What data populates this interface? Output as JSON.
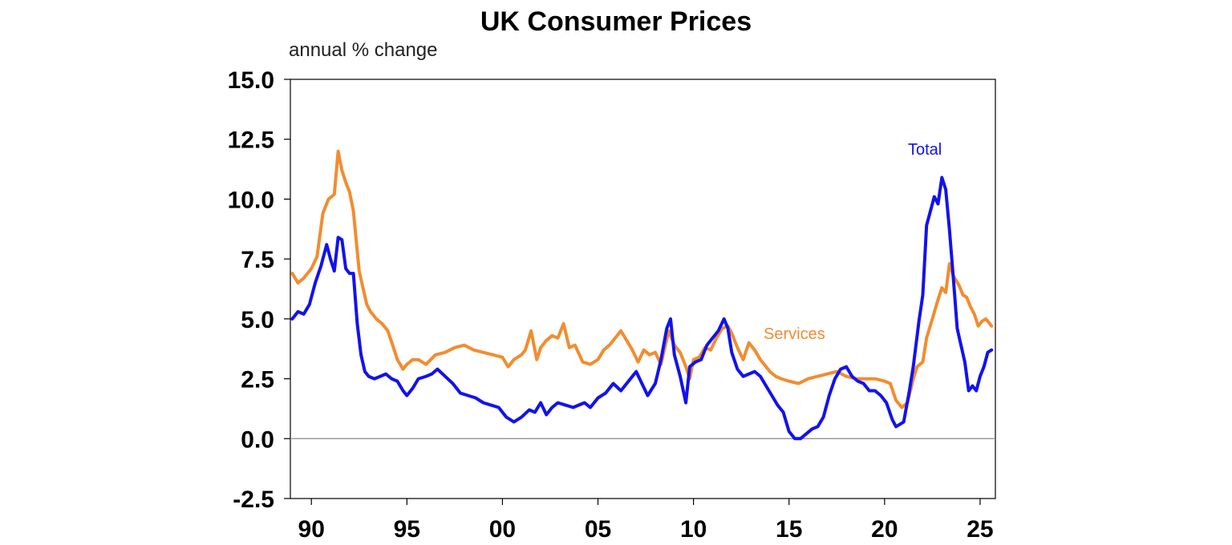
{
  "chart_data": {
    "type": "line",
    "title": "UK Consumer Prices",
    "ylabel": "annual % change",
    "xlabel": "",
    "xlim": [
      1988.9,
      2025.8
    ],
    "ylim": [
      -2.5,
      15.0
    ],
    "yticks": [
      15.0,
      12.5,
      10.0,
      7.5,
      5.0,
      2.5,
      0.0,
      -2.5
    ],
    "ytick_labels": [
      "15.0",
      "12.5",
      "10.0",
      "7.5",
      "5.0",
      "2.5",
      "0.0",
      "-2.5"
    ],
    "xticks": [
      1990,
      1995,
      2000,
      2005,
      2010,
      2015,
      2020,
      2025
    ],
    "xtick_labels": [
      "90",
      "95",
      "00",
      "05",
      "10",
      "15",
      "20",
      "25"
    ],
    "zero_line": 0,
    "series": [
      {
        "name": "Services",
        "color": "#F28C30",
        "x": [
          1989.0,
          1989.3,
          1989.6,
          1990.0,
          1990.3,
          1990.6,
          1990.9,
          1991.2,
          1991.4,
          1991.6,
          1991.8,
          1992.0,
          1992.2,
          1992.5,
          1992.7,
          1992.9,
          1993.1,
          1993.4,
          1993.7,
          1994.0,
          1994.3,
          1994.5,
          1994.8,
          1995.0,
          1995.3,
          1995.6,
          1996.0,
          1996.5,
          1997.0,
          1997.5,
          1998.0,
          1998.5,
          1999.0,
          1999.5,
          2000.0,
          2000.3,
          2000.6,
          2001.0,
          2001.2,
          2001.5,
          2001.8,
          2002.0,
          2002.3,
          2002.6,
          2002.9,
          2003.2,
          2003.5,
          2003.8,
          2004.2,
          2004.6,
          2005.0,
          2005.3,
          2005.6,
          2005.9,
          2006.2,
          2006.5,
          2006.8,
          2007.1,
          2007.4,
          2007.7,
          2008.0,
          2008.3,
          2008.7,
          2009.0,
          2009.3,
          2009.6,
          2009.8,
          2010.0,
          2010.3,
          2010.6,
          2010.9,
          2011.2,
          2011.5,
          2011.8,
          2012.0,
          2012.3,
          2012.6,
          2012.9,
          2013.2,
          2013.5,
          2013.8,
          2014.0,
          2014.3,
          2014.6,
          2015.0,
          2015.5,
          2016.0,
          2016.5,
          2017.0,
          2017.5,
          2018.0,
          2018.5,
          2019.0,
          2019.5,
          2020.0,
          2020.3,
          2020.6,
          2020.9,
          2021.2,
          2021.5,
          2021.7,
          2022.0,
          2022.2,
          2022.5,
          2022.8,
          2023.0,
          2023.2,
          2023.4,
          2023.6,
          2023.9,
          2024.1,
          2024.3,
          2024.5,
          2024.7,
          2024.9,
          2025.1,
          2025.3,
          2025.6
        ],
        "values": [
          6.9,
          6.5,
          6.7,
          7.1,
          7.6,
          9.4,
          10.0,
          10.2,
          12.0,
          11.2,
          10.7,
          10.3,
          9.5,
          7.0,
          6.3,
          5.6,
          5.3,
          5.0,
          4.8,
          4.5,
          3.8,
          3.3,
          2.9,
          3.1,
          3.3,
          3.3,
          3.1,
          3.5,
          3.6,
          3.8,
          3.9,
          3.7,
          3.6,
          3.5,
          3.4,
          3.0,
          3.3,
          3.5,
          3.7,
          4.5,
          3.3,
          3.8,
          4.1,
          4.3,
          4.2,
          4.8,
          3.8,
          3.9,
          3.2,
          3.1,
          3.3,
          3.7,
          3.9,
          4.2,
          4.5,
          4.1,
          3.7,
          3.2,
          3.7,
          3.5,
          3.6,
          3.1,
          4.5,
          3.9,
          3.6,
          3.0,
          2.5,
          3.3,
          3.4,
          3.8,
          3.7,
          4.2,
          4.6,
          4.7,
          4.4,
          3.8,
          3.3,
          4.0,
          3.7,
          3.3,
          3.0,
          2.8,
          2.6,
          2.5,
          2.4,
          2.3,
          2.5,
          2.6,
          2.7,
          2.8,
          2.6,
          2.5,
          2.5,
          2.5,
          2.4,
          2.3,
          1.6,
          1.3,
          1.5,
          2.5,
          3.0,
          3.2,
          4.2,
          5.0,
          5.8,
          6.3,
          6.1,
          7.3,
          6.8,
          6.4,
          6.0,
          5.9,
          5.5,
          5.2,
          4.7,
          4.9,
          5.0,
          4.7
        ]
      },
      {
        "name": "Total",
        "color": "#1212EE",
        "x": [
          1989.0,
          1989.3,
          1989.6,
          1989.9,
          1990.2,
          1990.5,
          1990.8,
          1991.0,
          1991.2,
          1991.4,
          1991.6,
          1991.8,
          1992.0,
          1992.2,
          1992.4,
          1992.6,
          1992.8,
          1993.0,
          1993.3,
          1993.6,
          1993.9,
          1994.2,
          1994.5,
          1994.8,
          1995.0,
          1995.3,
          1995.6,
          1996.0,
          1996.3,
          1996.6,
          1997.0,
          1997.4,
          1997.8,
          1998.2,
          1998.6,
          1999.0,
          1999.4,
          1999.8,
          2000.2,
          2000.6,
          2001.0,
          2001.4,
          2001.7,
          2002.0,
          2002.3,
          2002.6,
          2002.9,
          2003.3,
          2003.7,
          2004.0,
          2004.3,
          2004.6,
          2005.0,
          2005.4,
          2005.8,
          2006.2,
          2006.6,
          2007.0,
          2007.3,
          2007.6,
          2008.0,
          2008.3,
          2008.6,
          2008.8,
          2009.0,
          2009.3,
          2009.6,
          2009.8,
          2010.1,
          2010.4,
          2010.7,
          2011.0,
          2011.3,
          2011.6,
          2011.8,
          2012.0,
          2012.3,
          2012.6,
          2012.9,
          2013.2,
          2013.5,
          2013.8,
          2014.1,
          2014.4,
          2014.7,
          2015.0,
          2015.3,
          2015.6,
          2015.9,
          2016.2,
          2016.5,
          2016.8,
          2017.1,
          2017.4,
          2017.7,
          2018.0,
          2018.3,
          2018.6,
          2018.9,
          2019.2,
          2019.5,
          2019.8,
          2020.1,
          2020.4,
          2020.6,
          2020.8,
          2021.0,
          2021.3,
          2021.5,
          2021.8,
          2022.0,
          2022.2,
          2022.4,
          2022.6,
          2022.8,
          2023.0,
          2023.2,
          2023.4,
          2023.6,
          2023.8,
          2024.0,
          2024.2,
          2024.4,
          2024.6,
          2024.8,
          2025.0,
          2025.2,
          2025.4,
          2025.6
        ],
        "values": [
          5.0,
          5.3,
          5.2,
          5.6,
          6.5,
          7.2,
          8.1,
          7.5,
          7.0,
          8.4,
          8.3,
          7.1,
          6.9,
          6.9,
          4.8,
          3.5,
          2.8,
          2.6,
          2.5,
          2.6,
          2.7,
          2.5,
          2.4,
          2.0,
          1.8,
          2.1,
          2.5,
          2.6,
          2.7,
          2.9,
          2.6,
          2.3,
          1.9,
          1.8,
          1.7,
          1.5,
          1.4,
          1.3,
          0.9,
          0.7,
          0.9,
          1.2,
          1.1,
          1.5,
          1.0,
          1.3,
          1.5,
          1.4,
          1.3,
          1.4,
          1.5,
          1.3,
          1.7,
          1.9,
          2.3,
          2.0,
          2.4,
          2.8,
          2.3,
          1.8,
          2.3,
          3.3,
          4.6,
          5.0,
          3.5,
          2.6,
          1.5,
          3.0,
          3.2,
          3.3,
          3.9,
          4.2,
          4.5,
          5.0,
          4.6,
          3.6,
          2.9,
          2.6,
          2.7,
          2.8,
          2.6,
          2.2,
          1.8,
          1.4,
          1.1,
          0.3,
          0.0,
          0.0,
          0.2,
          0.4,
          0.5,
          0.9,
          1.8,
          2.5,
          2.9,
          3.0,
          2.6,
          2.4,
          2.3,
          2.0,
          2.0,
          1.8,
          1.5,
          0.8,
          0.5,
          0.6,
          0.7,
          2.0,
          3.0,
          4.9,
          6.0,
          8.9,
          9.5,
          10.1,
          9.8,
          10.9,
          10.4,
          8.7,
          6.7,
          4.6,
          3.9,
          3.2,
          2.0,
          2.2,
          2.0,
          2.6,
          3.0,
          3.6,
          3.7
        ]
      }
    ],
    "labels": {
      "services": "Services",
      "total": "Total"
    }
  }
}
